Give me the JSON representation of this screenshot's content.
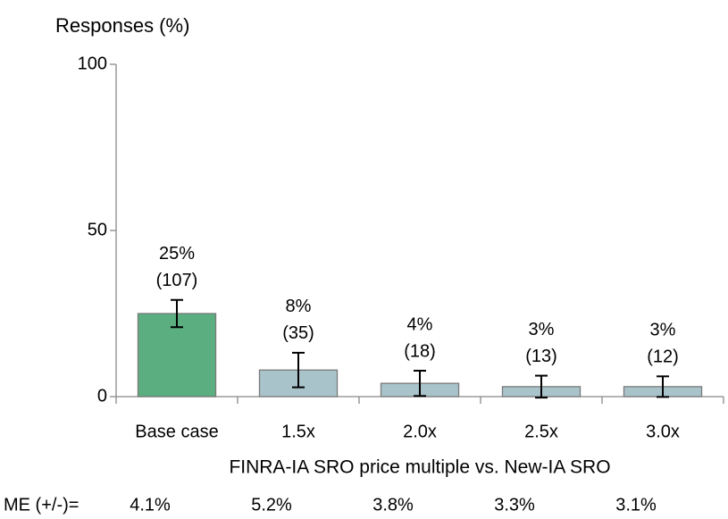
{
  "chart_data": {
    "type": "bar",
    "y_axis_label": "Responses (%)",
    "x_axis_label": "FINRA-IA SRO price multiple vs. New-IA SRO",
    "categories": [
      "Base case",
      "1.5x",
      "2.0x",
      "2.5x",
      "3.0x"
    ],
    "values": [
      25,
      8,
      4,
      3,
      3
    ],
    "value_labels": [
      "25%",
      "8%",
      "4%",
      "3%",
      "3%"
    ],
    "count_labels": [
      "(107)",
      "(35)",
      "(18)",
      "(13)",
      "(12)"
    ],
    "errors": [
      4.1,
      5.2,
      3.8,
      3.3,
      3.1
    ],
    "me_label": "ME (+/-)=",
    "error_labels": [
      "4.1%",
      "5.2%",
      "3.8%",
      "3.3%",
      "3.1%"
    ],
    "colors": [
      "#5aae7f",
      "#a9c3cb",
      "#a9c3cb",
      "#a9c3cb",
      "#a9c3cb"
    ],
    "ylim": [
      0,
      100
    ],
    "yticks": [
      0,
      50,
      100
    ],
    "grid": false
  }
}
